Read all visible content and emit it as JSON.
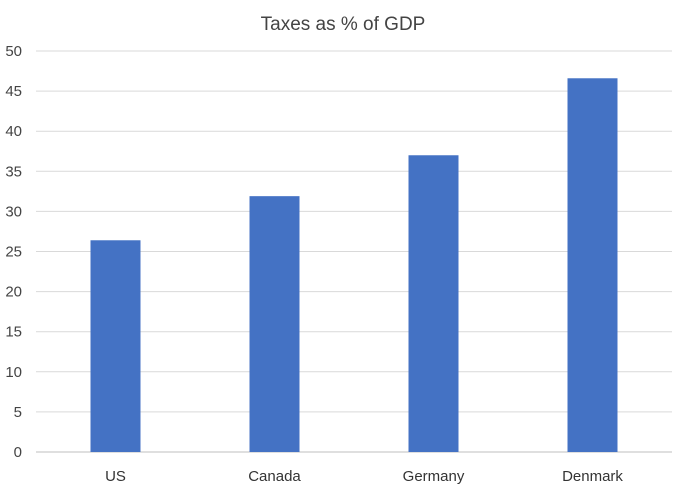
{
  "chart_data": {
    "type": "bar",
    "title": "Taxes as % of GDP",
    "categories": [
      "US",
      "Canada",
      "Germany",
      "Denmark"
    ],
    "values": [
      26.4,
      31.9,
      37.0,
      46.6
    ],
    "xlabel": "",
    "ylabel": "",
    "ylim": [
      0,
      50
    ],
    "yticks": [
      "0",
      "5",
      "10",
      "15",
      "20",
      "25",
      "30",
      "35",
      "40",
      "45",
      "50"
    ],
    "grid": true,
    "legend": "none",
    "bar_color": "#4472c4"
  }
}
